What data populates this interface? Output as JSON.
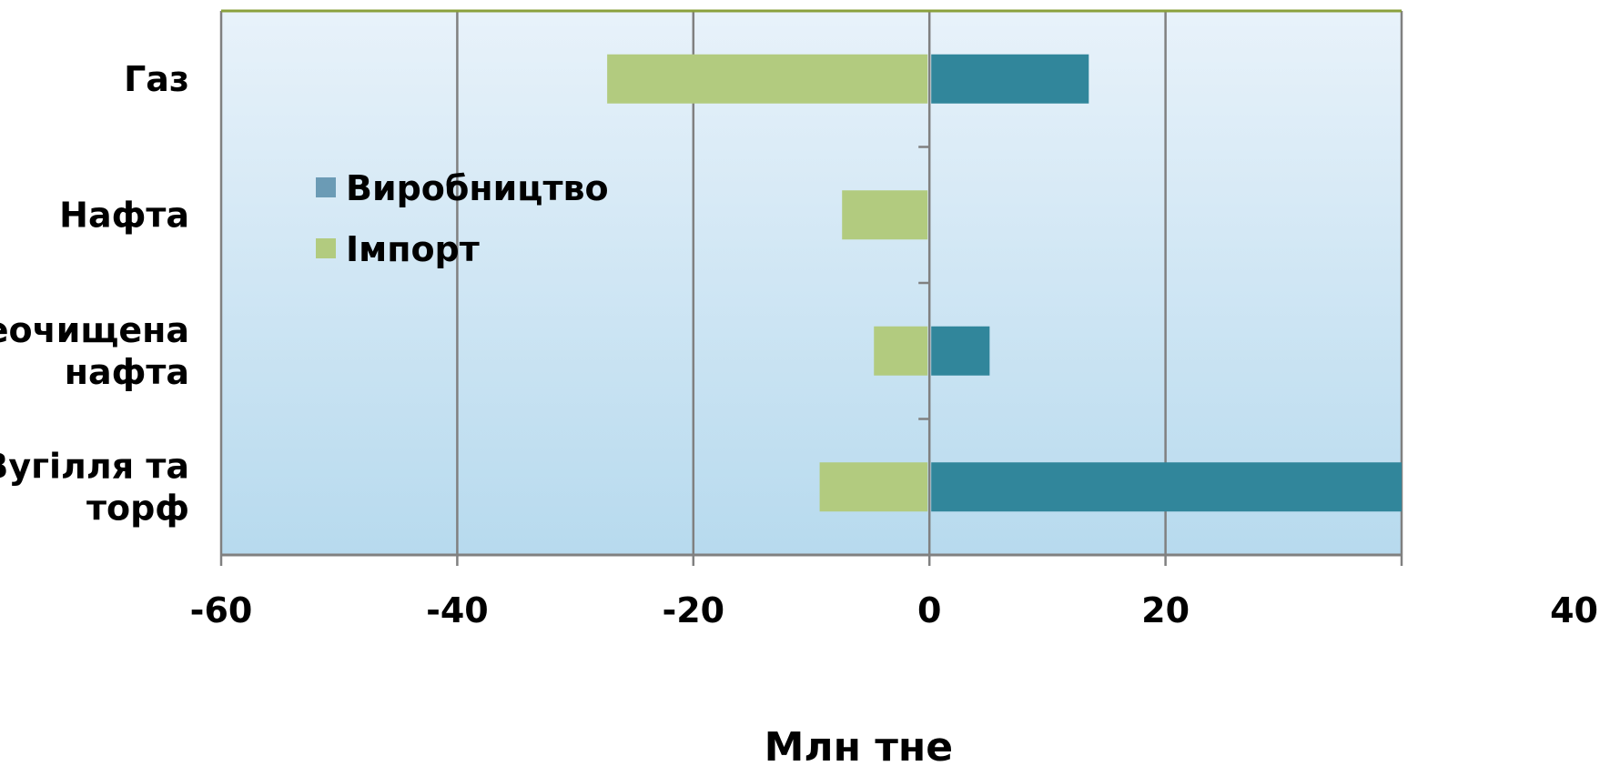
{
  "chart_data": {
    "type": "bar",
    "orientation": "horizontal",
    "stacking": "diverging",
    "categories": [
      [
        "Газ"
      ],
      [
        "Нафта"
      ],
      [
        "Неочищена",
        " нафта"
      ],
      [
        "Вугілля та",
        "торф"
      ]
    ],
    "series": [
      {
        "name": "Виробництво",
        "values": [
          13.5,
          0,
          5.1,
          40
        ],
        "color": "#31869b"
      },
      {
        "name": "Імпорт",
        "values": [
          -27.3,
          -7.4,
          -4.7,
          -9.3
        ],
        "color": "#b2cb7f"
      }
    ],
    "legend": {
      "placement": "left-inside",
      "items": [
        {
          "label": "Виробництво",
          "swatch": "#6b9bb5"
        },
        {
          "label": "Імпорт",
          "swatch": "#b2cb7f"
        }
      ]
    },
    "xlabel": "Млн тне",
    "xlim": [
      -60,
      40
    ],
    "xticks": [
      "-60",
      "-40",
      "-20",
      "0",
      "20",
      "40"
    ],
    "grid": true,
    "colors": {
      "plot_bg_top": "#e8f2fa",
      "plot_bg_bottom": "#b7daee",
      "gridline": "#808080",
      "top_border": "#8aa03c"
    }
  }
}
